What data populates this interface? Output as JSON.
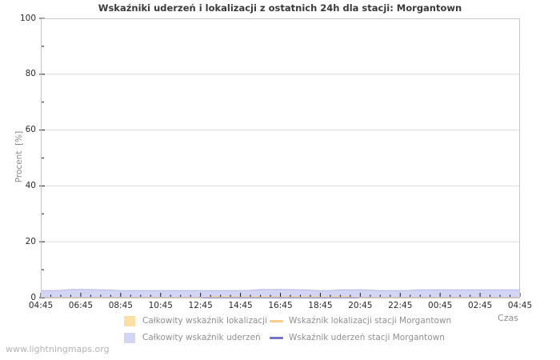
{
  "watermark": "www.lightningmaps.org",
  "chart_data": {
    "type": "area",
    "title": "Wskaźniki uderzeń i lokalizacji z ostatnich 24h dla stacji: Morgantown",
    "ylabel": "Procent  [%]",
    "xlabel": "Czas",
    "ylim": [
      0,
      100
    ],
    "grid": true,
    "legend_position": "bottom",
    "yticks_major": [
      0,
      20,
      40,
      60,
      80,
      100
    ],
    "yticks_minor": [
      10,
      30,
      50,
      70,
      90
    ],
    "x_tick_labels": [
      "04:45",
      "06:45",
      "08:45",
      "10:45",
      "12:45",
      "14:45",
      "16:45",
      "18:45",
      "20:45",
      "22:45",
      "00:45",
      "02:45",
      "04:45"
    ],
    "x_minor_ticks_per_interval": 4,
    "x_step_minutes": 30,
    "series": [
      {
        "name": "Wskaźnik lokalizacji stacji Morgantown",
        "type": "line",
        "color": "#f6cd8c",
        "values": [
          0,
          0,
          0,
          0,
          0,
          0,
          0,
          0,
          0,
          0,
          0,
          0,
          0,
          0,
          0,
          0,
          0,
          0,
          0,
          0,
          0,
          0,
          0,
          0,
          0,
          0,
          0,
          0,
          0,
          0,
          0,
          0,
          0,
          0,
          0,
          0,
          0,
          0,
          0,
          0,
          0,
          0,
          0,
          0,
          0,
          0,
          0,
          0,
          0
        ]
      },
      {
        "name": "Wskaźnik uderzeń stacji Morgantown",
        "type": "line",
        "color": "#7373cc",
        "values": [
          0,
          0,
          0,
          0,
          0,
          0,
          0,
          0,
          0,
          0,
          0,
          0,
          0,
          0,
          0,
          0,
          0,
          0,
          0,
          0,
          0,
          0,
          0,
          0,
          0,
          0,
          0,
          0,
          0,
          0,
          0,
          0,
          0,
          0,
          0,
          0,
          0,
          0,
          0,
          0,
          0,
          0,
          0,
          0,
          0,
          0,
          0,
          0,
          0
        ]
      },
      {
        "name": "Całkowity wskaźnik uderzeń",
        "type": "area",
        "color": "#d4d4f4",
        "edge": "#b7b7e9",
        "values": [
          2.5,
          2.5,
          2.6,
          2.9,
          2.9,
          2.9,
          2.8,
          2.7,
          2.5,
          2.5,
          2.5,
          2.5,
          2.5,
          2.5,
          2.5,
          2.5,
          2.5,
          2.5,
          2.5,
          2.5,
          2.5,
          2.6,
          2.9,
          2.9,
          2.9,
          2.9,
          2.8,
          2.7,
          2.5,
          2.5,
          2.8,
          2.8,
          2.8,
          2.7,
          2.5,
          2.5,
          2.5,
          2.6,
          2.8,
          2.8,
          2.8,
          2.8,
          2.8,
          2.8,
          2.8,
          2.8,
          2.8,
          2.8,
          2.8
        ]
      },
      {
        "name": "Całkowity wskaźnik lokalizacji",
        "type": "area",
        "color": "#fbdfa6",
        "edge": "#f3cf92",
        "values": [
          0,
          0,
          0,
          0,
          0,
          0,
          0,
          0,
          0,
          0,
          0,
          0,
          0,
          0,
          0,
          0,
          0,
          0.4,
          0.4,
          0.4,
          0.4,
          0.4,
          0.4,
          0.4,
          0.4,
          0.4,
          0.4,
          0.4,
          0.4,
          0.4,
          0.4,
          0.4,
          0,
          0,
          0,
          0,
          0,
          0,
          0,
          0,
          0,
          0,
          0,
          0,
          0,
          0,
          0,
          0,
          0
        ]
      }
    ]
  },
  "legend": {
    "items": [
      {
        "label": "Całkowity wskaźnik lokalizacji",
        "swatch": "area",
        "color": "#fbdfa6"
      },
      {
        "label": "Wskaźnik lokalizacji stacji Morgantown",
        "swatch": "line",
        "color": "#f6cd8c"
      },
      {
        "label": "Całkowity wskaźnik uderzeń",
        "swatch": "area",
        "color": "#d4d4f4"
      },
      {
        "label": "Wskaźnik uderzeń stacji Morgantown",
        "swatch": "line",
        "color": "#7373cc"
      }
    ]
  }
}
